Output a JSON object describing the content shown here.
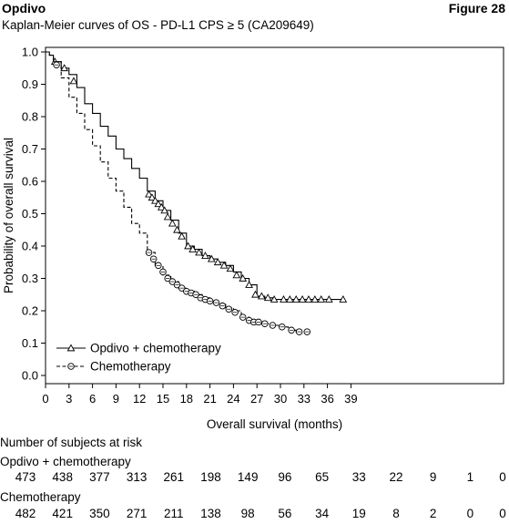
{
  "header": {
    "brand": "Opdivo",
    "figure_label": "Figure 28",
    "subtitle": "Kaplan-Meier curves of OS - PD-L1 CPS ≥ 5 (CA209649)"
  },
  "chart_data": {
    "type": "line",
    "title": "Kaplan-Meier curves of OS - PD-L1 CPS ≥ 5 (CA209649)",
    "xlabel": "Overall survival (months)",
    "ylabel": "Probability of overall survival",
    "xlim": [
      0,
      39
    ],
    "ylim": [
      0,
      1.0
    ],
    "xticks": [
      0,
      3,
      6,
      9,
      12,
      15,
      18,
      21,
      24,
      27,
      30,
      33,
      36,
      39
    ],
    "yticks": [
      0.0,
      0.1,
      0.2,
      0.3,
      0.4,
      0.5,
      0.6,
      0.7,
      0.8,
      0.9,
      1.0
    ],
    "legend_position": "bottom-left",
    "grid": false,
    "series": [
      {
        "name": "Opdivo + chemotherapy",
        "line_style": "solid",
        "marker": "triangle",
        "points": [
          [
            0,
            1.0
          ],
          [
            0.5,
            0.99
          ],
          [
            1,
            0.97
          ],
          [
            2,
            0.95
          ],
          [
            3,
            0.93
          ],
          [
            4,
            0.89
          ],
          [
            5,
            0.84
          ],
          [
            6,
            0.81
          ],
          [
            7,
            0.77
          ],
          [
            8,
            0.74
          ],
          [
            9,
            0.7
          ],
          [
            10,
            0.67
          ],
          [
            11,
            0.64
          ],
          [
            12,
            0.61
          ],
          [
            13,
            0.57
          ],
          [
            14,
            0.54
          ],
          [
            15,
            0.51
          ],
          [
            16,
            0.48
          ],
          [
            17,
            0.44
          ],
          [
            18,
            0.4
          ],
          [
            19,
            0.39
          ],
          [
            20,
            0.37
          ],
          [
            21,
            0.36
          ],
          [
            22,
            0.35
          ],
          [
            23,
            0.34
          ],
          [
            24,
            0.32
          ],
          [
            25,
            0.3
          ],
          [
            26,
            0.28
          ],
          [
            27,
            0.245
          ],
          [
            28,
            0.24
          ],
          [
            29,
            0.235
          ],
          [
            30,
            0.235
          ],
          [
            33,
            0.235
          ],
          [
            36,
            0.235
          ],
          [
            38,
            0.235
          ]
        ],
        "censor": [
          [
            1.2,
            0.97
          ],
          [
            2.4,
            0.95
          ],
          [
            3.6,
            0.91
          ],
          [
            13.2,
            0.56
          ],
          [
            13.6,
            0.55
          ],
          [
            14.0,
            0.54
          ],
          [
            14.4,
            0.53
          ],
          [
            14.8,
            0.52
          ],
          [
            15.2,
            0.51
          ],
          [
            15.6,
            0.49
          ],
          [
            16.2,
            0.47
          ],
          [
            16.8,
            0.45
          ],
          [
            17.4,
            0.43
          ],
          [
            18.2,
            0.4
          ],
          [
            18.8,
            0.39
          ],
          [
            19.6,
            0.38
          ],
          [
            20.4,
            0.37
          ],
          [
            21.2,
            0.36
          ],
          [
            22.0,
            0.35
          ],
          [
            22.8,
            0.34
          ],
          [
            23.6,
            0.33
          ],
          [
            24.4,
            0.31
          ],
          [
            25.2,
            0.3
          ],
          [
            26.0,
            0.28
          ],
          [
            26.8,
            0.25
          ],
          [
            27.6,
            0.245
          ],
          [
            28.4,
            0.24
          ],
          [
            29.2,
            0.235
          ],
          [
            30.4,
            0.235
          ],
          [
            31.2,
            0.235
          ],
          [
            32.0,
            0.235
          ],
          [
            32.8,
            0.235
          ],
          [
            33.6,
            0.235
          ],
          [
            34.4,
            0.235
          ],
          [
            35.2,
            0.235
          ],
          [
            36.2,
            0.235
          ],
          [
            38,
            0.235
          ]
        ]
      },
      {
        "name": "Chemotherapy",
        "line_style": "dashed",
        "marker": "circle",
        "points": [
          [
            0,
            1.0
          ],
          [
            0.5,
            0.99
          ],
          [
            1,
            0.97
          ],
          [
            2,
            0.92
          ],
          [
            3,
            0.86
          ],
          [
            4,
            0.81
          ],
          [
            5,
            0.76
          ],
          [
            6,
            0.71
          ],
          [
            7,
            0.66
          ],
          [
            8,
            0.61
          ],
          [
            9,
            0.57
          ],
          [
            10,
            0.52
          ],
          [
            11,
            0.47
          ],
          [
            12,
            0.44
          ],
          [
            13,
            0.38
          ],
          [
            14,
            0.34
          ],
          [
            15,
            0.31
          ],
          [
            16,
            0.29
          ],
          [
            17,
            0.27
          ],
          [
            18,
            0.26
          ],
          [
            19,
            0.25
          ],
          [
            20,
            0.24
          ],
          [
            21,
            0.23
          ],
          [
            22,
            0.22
          ],
          [
            23,
            0.21
          ],
          [
            24,
            0.2
          ],
          [
            25,
            0.18
          ],
          [
            26,
            0.17
          ],
          [
            27,
            0.165
          ],
          [
            28,
            0.16
          ],
          [
            29,
            0.155
          ],
          [
            30,
            0.15
          ],
          [
            31,
            0.14
          ],
          [
            32,
            0.135
          ],
          [
            33,
            0.135
          ]
        ],
        "censor": [
          [
            1.4,
            0.96
          ],
          [
            13.2,
            0.38
          ],
          [
            13.8,
            0.36
          ],
          [
            14.4,
            0.34
          ],
          [
            15.0,
            0.32
          ],
          [
            15.6,
            0.3
          ],
          [
            16.2,
            0.29
          ],
          [
            16.8,
            0.28
          ],
          [
            17.4,
            0.27
          ],
          [
            18.0,
            0.26
          ],
          [
            18.6,
            0.255
          ],
          [
            19.2,
            0.25
          ],
          [
            19.8,
            0.24
          ],
          [
            20.4,
            0.235
          ],
          [
            21.0,
            0.23
          ],
          [
            21.8,
            0.225
          ],
          [
            22.6,
            0.215
          ],
          [
            23.4,
            0.205
          ],
          [
            24.2,
            0.195
          ],
          [
            25.2,
            0.18
          ],
          [
            26.0,
            0.17
          ],
          [
            26.6,
            0.165
          ],
          [
            27.2,
            0.165
          ],
          [
            28.0,
            0.16
          ],
          [
            29.0,
            0.155
          ],
          [
            30.2,
            0.15
          ],
          [
            31.4,
            0.14
          ],
          [
            32.4,
            0.135
          ],
          [
            33.4,
            0.135
          ]
        ]
      }
    ]
  },
  "risk_table": {
    "heading": "Number of subjects at risk",
    "times": [
      0,
      3,
      6,
      9,
      12,
      15,
      18,
      21,
      24,
      27,
      30,
      33,
      36,
      39
    ],
    "groups": [
      {
        "name": "Opdivo + chemotherapy",
        "counts": [
          "473",
          "438",
          "377",
          "313",
          "261",
          "198",
          "149",
          "96",
          "65",
          "33",
          "22",
          "9",
          "1",
          "0"
        ]
      },
      {
        "name": "Chemotherapy",
        "counts": [
          "482",
          "421",
          "350",
          "271",
          "211",
          "138",
          "98",
          "56",
          "34",
          "19",
          "8",
          "2",
          "0",
          "0"
        ]
      }
    ]
  }
}
